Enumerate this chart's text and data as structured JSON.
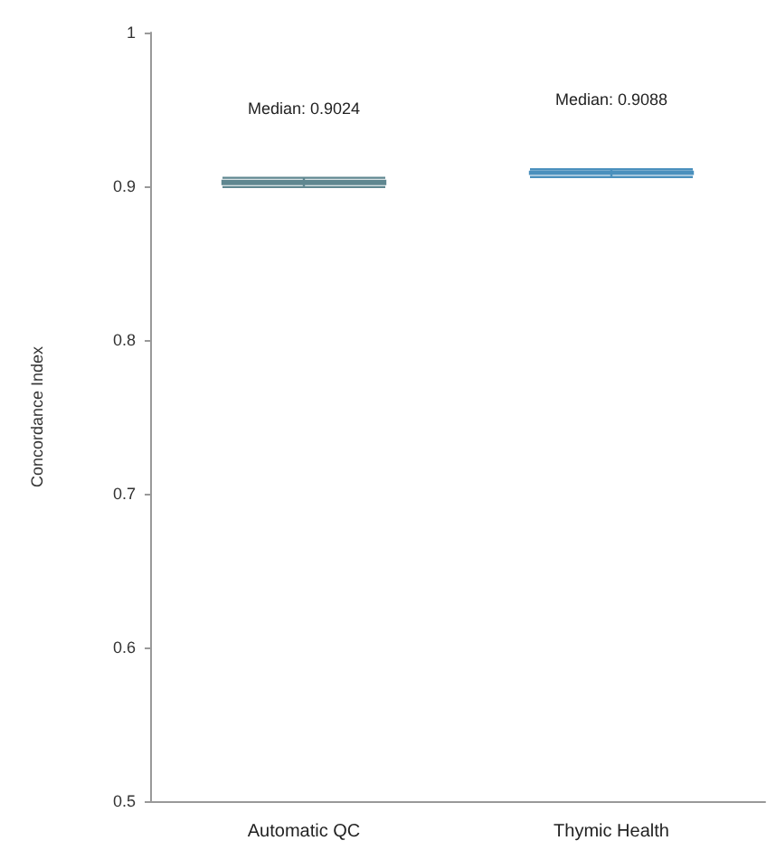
{
  "chart_data": {
    "type": "box",
    "categories": [
      "Automatic QC",
      "Thymic Health"
    ],
    "boxes": [
      {
        "low": 0.8995,
        "q1": 0.9015,
        "median": 0.9024,
        "q3": 0.9035,
        "high": 0.9055
      },
      {
        "low": 0.906,
        "q1": 0.908,
        "median": 0.9088,
        "q3": 0.9095,
        "high": 0.911
      }
    ],
    "colors": [
      "#5f8790",
      "#4a90bd"
    ],
    "ylabel": "Concordance Index",
    "ylim": [
      0.5,
      1
    ],
    "yticks": [
      0.5,
      0.6,
      0.7,
      0.8,
      0.9,
      1
    ],
    "grid": false,
    "annotations": [
      "Median: 0.9024",
      "Median: 0.9088"
    ]
  }
}
